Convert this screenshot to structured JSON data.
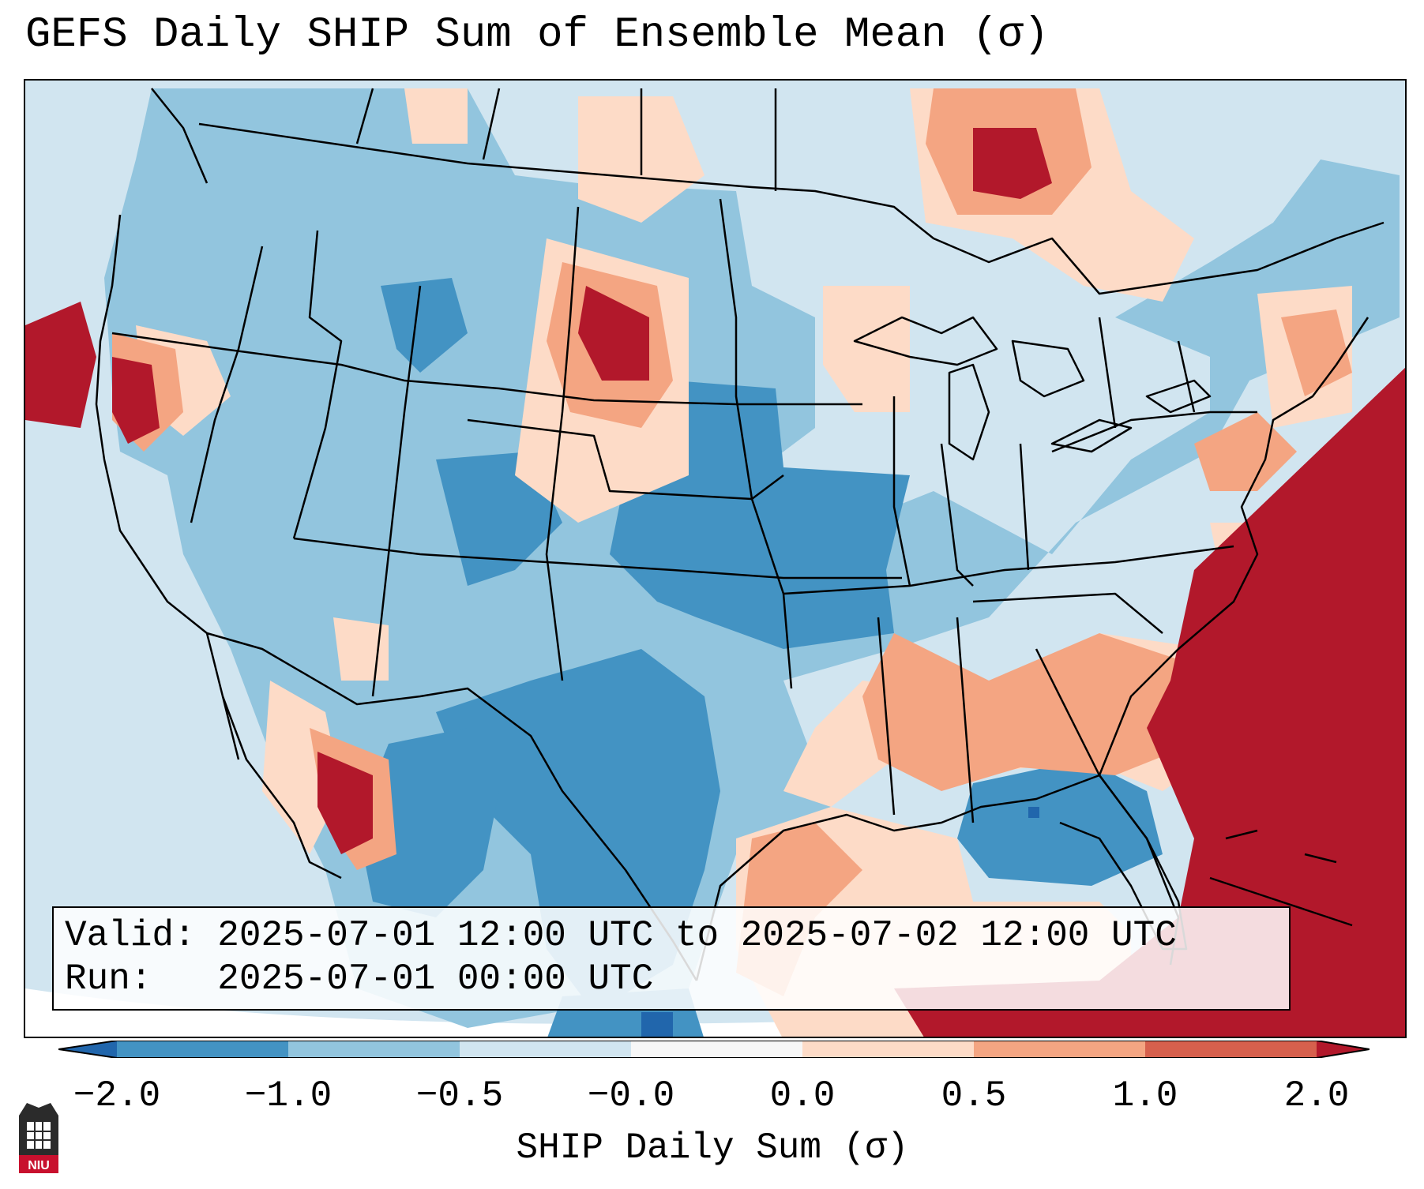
{
  "title": "GEFS Daily SHIP Sum of Ensemble Mean (σ)",
  "info": {
    "valid_line": "Valid: 2025-07-01 12:00 UTC to 2025-07-02 12:00 UTC",
    "run_line": "Run:   2025-07-01 00:00 UTC"
  },
  "colorbar": {
    "label": "SHIP Daily Sum (σ)",
    "ticks": [
      "−2.0",
      "−1.0",
      "−0.5",
      "−0.0",
      "0.0",
      "0.5",
      "1.0",
      "2.0"
    ],
    "colors": [
      "#4393c3",
      "#92c5de",
      "#d1e5f0",
      "#f7f7f7",
      "#fddbc7",
      "#f4a582",
      "#d6604d",
      "#b2182b"
    ],
    "extend_low": "#2166ac",
    "extend_high": "#b2182b"
  },
  "logo": {
    "text": "NIU"
  }
}
